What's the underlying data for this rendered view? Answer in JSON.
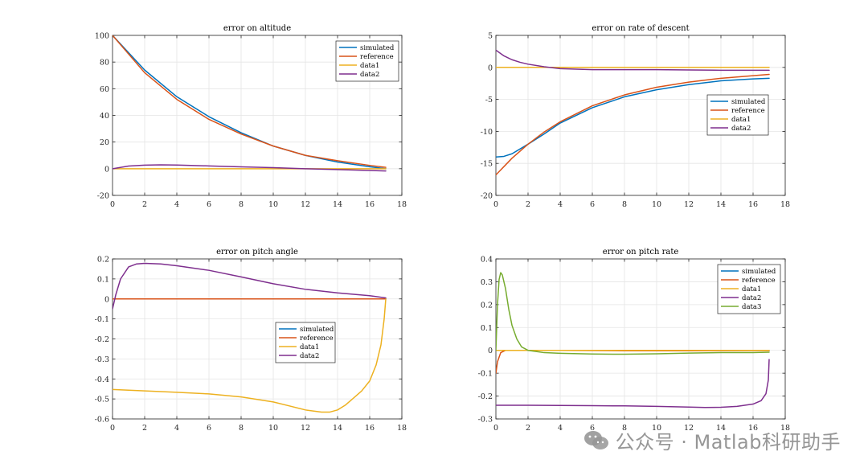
{
  "figure": {
    "watermark": "公众号 · Matlab科研助手",
    "colors": {
      "simulated": "#0072BD",
      "reference": "#D95319",
      "data1": "#EDB120",
      "data2": "#7E2F8E",
      "data3": "#77AC30",
      "grid": "#e5e5e5",
      "axis": "#262626"
    }
  },
  "chart_data": [
    {
      "type": "line",
      "title": "error on altitude",
      "xlim": [
        0,
        18
      ],
      "ylim": [
        -20,
        100
      ],
      "xticks": [
        0,
        2,
        4,
        6,
        8,
        10,
        12,
        14,
        16,
        18
      ],
      "yticks": [
        -20,
        0,
        20,
        40,
        60,
        80,
        100
      ],
      "grid": true,
      "legend_position": "top-right",
      "series": [
        {
          "name": "simulated",
          "color": "#0072BD",
          "x": [
            0,
            2,
            4,
            6,
            8,
            10,
            12,
            14,
            16,
            17
          ],
          "y": [
            100,
            74,
            54,
            39,
            27,
            17,
            10,
            5,
            1.5,
            0
          ]
        },
        {
          "name": "reference",
          "color": "#D95319",
          "x": [
            0,
            2,
            4,
            6,
            8,
            10,
            12,
            14,
            16,
            17
          ],
          "y": [
            100,
            72,
            52,
            37,
            26,
            17,
            10,
            6,
            2.5,
            1
          ]
        },
        {
          "name": "data1",
          "color": "#EDB120",
          "x": [
            0,
            17
          ],
          "y": [
            0,
            0
          ]
        },
        {
          "name": "data2",
          "color": "#7E2F8E",
          "x": [
            0,
            1,
            2,
            3,
            4,
            6,
            8,
            10,
            12,
            14,
            16,
            17
          ],
          "y": [
            0,
            2,
            2.7,
            2.9,
            2.8,
            2.1,
            1.4,
            0.8,
            0,
            -0.6,
            -1.3,
            -1.7
          ]
        }
      ]
    },
    {
      "type": "line",
      "title": "error on rate of descent",
      "xlim": [
        0,
        18
      ],
      "ylim": [
        -20,
        5
      ],
      "xticks": [
        0,
        2,
        4,
        6,
        8,
        10,
        12,
        14,
        16,
        18
      ],
      "yticks": [
        -20,
        -15,
        -10,
        -5,
        0,
        5
      ],
      "grid": true,
      "legend_position": "middle-right",
      "series": [
        {
          "name": "simulated",
          "color": "#0072BD",
          "x": [
            0,
            0.5,
            1,
            2,
            3,
            4,
            6,
            8,
            10,
            12,
            14,
            16,
            17
          ],
          "y": [
            -14,
            -13.9,
            -13.5,
            -12,
            -10.4,
            -8.7,
            -6.3,
            -4.6,
            -3.5,
            -2.7,
            -2.1,
            -1.8,
            -1.7
          ]
        },
        {
          "name": "reference",
          "color": "#D95319",
          "x": [
            0,
            0.5,
            1,
            2,
            3,
            4,
            6,
            8,
            10,
            12,
            14,
            16,
            17
          ],
          "y": [
            -16.8,
            -15.5,
            -14.2,
            -12,
            -10.1,
            -8.5,
            -6,
            -4.3,
            -3.1,
            -2.3,
            -1.7,
            -1.3,
            -1.1
          ]
        },
        {
          "name": "data1",
          "color": "#EDB120",
          "x": [
            0,
            17
          ],
          "y": [
            0,
            0
          ]
        },
        {
          "name": "data2",
          "color": "#7E2F8E",
          "x": [
            0,
            0.5,
            1,
            1.5,
            2,
            3,
            4,
            6,
            8,
            10,
            12,
            14,
            16,
            17
          ],
          "y": [
            2.7,
            1.8,
            1.2,
            0.8,
            0.5,
            0.1,
            -0.2,
            -0.35,
            -0.35,
            -0.35,
            -0.4,
            -0.45,
            -0.45,
            -0.45
          ]
        }
      ]
    },
    {
      "type": "line",
      "title": "error on pitch angle",
      "xlim": [
        0,
        18
      ],
      "ylim": [
        -0.6,
        0.2
      ],
      "xticks": [
        0,
        2,
        4,
        6,
        8,
        10,
        12,
        14,
        16,
        18
      ],
      "yticks": [
        -0.6,
        -0.5,
        -0.4,
        -0.3,
        -0.2,
        -0.1,
        0,
        0.1,
        0.2
      ],
      "grid": true,
      "legend_position": "lower-right",
      "series": [
        {
          "name": "simulated",
          "color": "#0072BD",
          "x": [
            0,
            17
          ],
          "y": [
            0,
            0
          ]
        },
        {
          "name": "reference",
          "color": "#D95319",
          "x": [
            0,
            17
          ],
          "y": [
            0,
            0
          ]
        },
        {
          "name": "data1",
          "color": "#EDB120",
          "x": [
            0,
            2,
            4,
            6,
            8,
            10,
            11,
            12,
            13,
            13.5,
            14,
            14.5,
            15,
            15.5,
            16,
            16.4,
            16.7,
            16.9,
            17
          ],
          "y": [
            -0.453,
            -0.46,
            -0.467,
            -0.475,
            -0.49,
            -0.515,
            -0.535,
            -0.555,
            -0.566,
            -0.566,
            -0.555,
            -0.53,
            -0.495,
            -0.46,
            -0.41,
            -0.33,
            -0.23,
            -0.1,
            0
          ]
        },
        {
          "name": "data2",
          "color": "#7E2F8E",
          "x": [
            0,
            0.2,
            0.5,
            1,
            1.5,
            2,
            3,
            4,
            6,
            8,
            10,
            12,
            14,
            16,
            17
          ],
          "y": [
            -0.05,
            0.02,
            0.1,
            0.16,
            0.175,
            0.178,
            0.175,
            0.166,
            0.143,
            0.11,
            0.076,
            0.048,
            0.03,
            0.016,
            0.005
          ]
        }
      ]
    },
    {
      "type": "line",
      "title": "error on pitch rate",
      "xlim": [
        0,
        18
      ],
      "ylim": [
        -0.3,
        0.4
      ],
      "xticks": [
        0,
        2,
        4,
        6,
        8,
        10,
        12,
        14,
        16,
        18
      ],
      "yticks": [
        -0.3,
        -0.2,
        -0.1,
        0,
        0.1,
        0.2,
        0.3,
        0.4
      ],
      "grid": true,
      "legend_position": "top-right",
      "series": [
        {
          "name": "simulated",
          "color": "#0072BD",
          "x": [
            0,
            17
          ],
          "y": [
            0,
            0
          ]
        },
        {
          "name": "reference",
          "color": "#D95319",
          "x": [
            0,
            0.1,
            0.3,
            0.6,
            1,
            2,
            4,
            8,
            12,
            16,
            17
          ],
          "y": [
            -0.1,
            -0.05,
            -0.01,
            0,
            0,
            0,
            0,
            -0.002,
            -0.002,
            -0.001,
            -0.001
          ]
        },
        {
          "name": "data1",
          "color": "#EDB120",
          "x": [
            0,
            17
          ],
          "y": [
            0,
            0
          ]
        },
        {
          "name": "data2",
          "color": "#7E2F8E",
          "x": [
            0,
            2,
            4,
            6,
            8,
            10,
            12,
            13,
            14,
            15,
            16,
            16.5,
            16.8,
            16.95,
            17
          ],
          "y": [
            -0.24,
            -0.24,
            -0.241,
            -0.242,
            -0.243,
            -0.245,
            -0.248,
            -0.25,
            -0.249,
            -0.245,
            -0.235,
            -0.22,
            -0.19,
            -0.13,
            -0.04
          ]
        },
        {
          "name": "data3",
          "color": "#77AC30",
          "x": [
            0,
            0.1,
            0.2,
            0.3,
            0.4,
            0.6,
            0.8,
            1,
            1.3,
            1.6,
            2,
            2.5,
            3,
            4,
            6,
            8,
            10,
            12,
            14,
            16,
            17
          ],
          "y": [
            0,
            0.2,
            0.31,
            0.34,
            0.33,
            0.27,
            0.18,
            0.11,
            0.05,
            0.015,
            0,
            -0.005,
            -0.01,
            -0.013,
            -0.016,
            -0.017,
            -0.015,
            -0.012,
            -0.01,
            -0.01,
            -0.008
          ]
        }
      ]
    }
  ]
}
